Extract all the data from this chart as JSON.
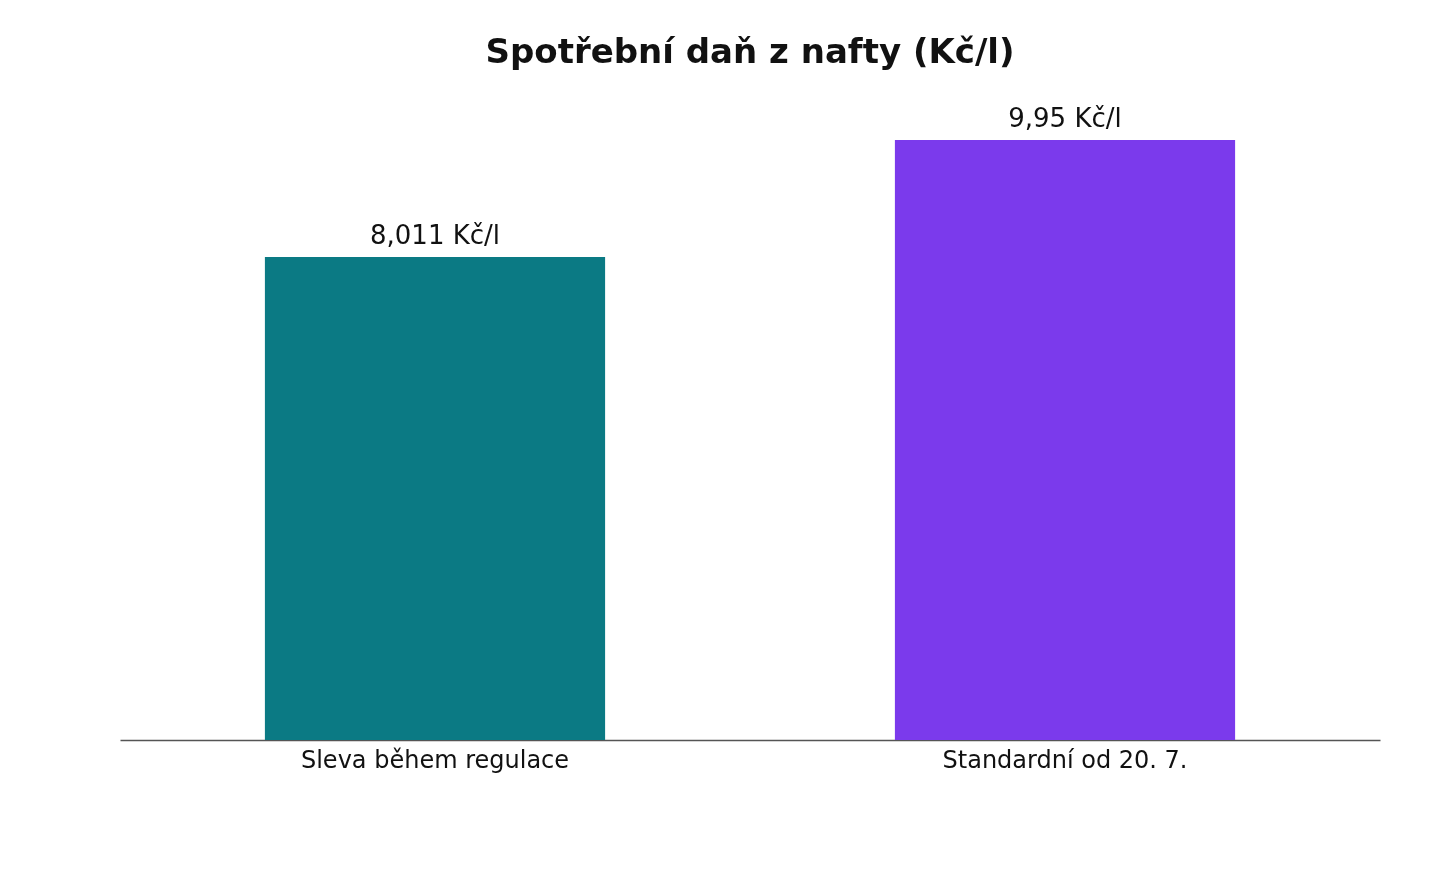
{
  "chart_data": {
    "type": "bar",
    "title": "Spotřební daň z nafty (Kč/l)",
    "categories": [
      "Sleva během regulace",
      "Standardní od 20. 7."
    ],
    "values": [
      8.011,
      9.95
    ],
    "colors": [
      "#0b7a84",
      "#7b3aec"
    ],
    "value_labels": [
      "8,011 Kč/l",
      "9,95 Kč/l"
    ]
  }
}
